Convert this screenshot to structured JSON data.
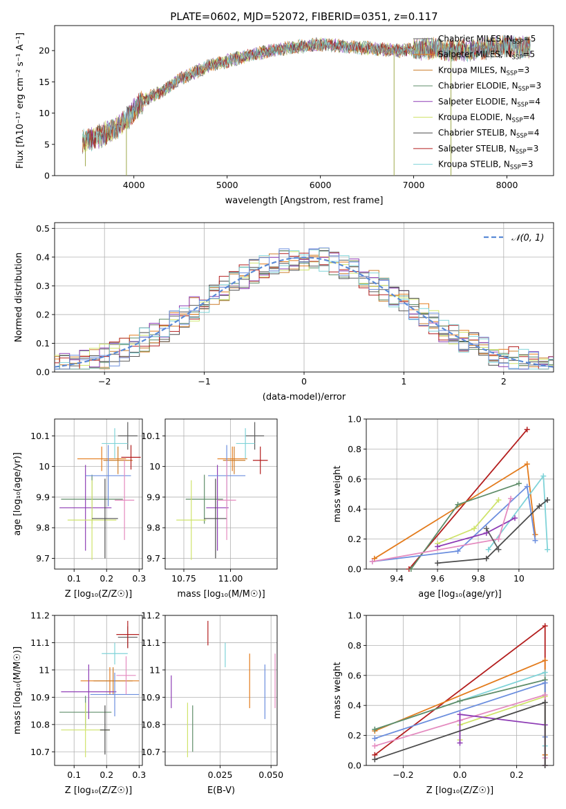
{
  "figure_title": "PLATE=0602, MJD=52072, FIBERID=0351, z=0.117",
  "colors": {
    "Chabrier MILES": "#5b5b5b",
    "Salpeter MILES": "#e37b1c",
    "Kroupa MILES": "#cc7d2a",
    "Chabrier ELODIE": "#5e8c68",
    "Salpeter ELODIE": "#8e3db5",
    "Kroupa ELODIE": "#cfe36a",
    "Chabrier STELIB": "#4b4b4b",
    "Salpeter STELIB": "#b31d1d",
    "Kroupa STELIB": "#7fd3d8",
    "blue": "#6b8ede",
    "pink": "#e48abf",
    "grid": "#b0b0b0",
    "normal_curve": "#5a8ad6"
  },
  "chart_data": [
    {
      "id": "spectrum",
      "type": "line",
      "title": "",
      "xlabel": "wavelength [Angstrom, rest frame]",
      "ylabel": "Flux [fλ10⁻¹⁷ erg cm⁻² s⁻¹ A⁻¹]",
      "xlim": [
        3150,
        8500
      ],
      "ylim": [
        0,
        24
      ],
      "xticks": [
        4000,
        5000,
        6000,
        7000,
        8000
      ],
      "yticks": [
        0,
        5,
        10,
        15,
        20
      ],
      "grid": false,
      "legend_position": "top-right",
      "continuum_knots": [
        [
          3450,
          5.5
        ],
        [
          3600,
          6.2
        ],
        [
          3800,
          7.5
        ],
        [
          3950,
          9.5
        ],
        [
          4100,
          12.0
        ],
        [
          4300,
          13.5
        ],
        [
          4500,
          15.5
        ],
        [
          4800,
          17.5
        ],
        [
          5100,
          18.7
        ],
        [
          5400,
          19.8
        ],
        [
          5700,
          20.5
        ],
        [
          6000,
          21.0
        ],
        [
          6400,
          20.5
        ],
        [
          6800,
          20.0
        ],
        [
          7200,
          20.3
        ],
        [
          7600,
          20.0
        ],
        [
          8000,
          20.8
        ],
        [
          8250,
          20.5
        ]
      ],
      "spikes": [
        [
          3920,
          0
        ],
        [
          6790,
          0
        ],
        [
          7400,
          0
        ],
        [
          3480,
          1.5
        ]
      ],
      "series": [
        {
          "name": "Chabrier MILES, N_SSP=5",
          "color_key": "Chabrier MILES",
          "legend_prefix": "Chabrier MILES, N",
          "legend_sub": "SSP",
          "legend_suffix": "=5"
        },
        {
          "name": "Salpeter MILES, N_SSP=5",
          "color_key": "Salpeter MILES",
          "legend_prefix": "Salpeter MILES, N",
          "legend_sub": "SSP",
          "legend_suffix": "=5"
        },
        {
          "name": "Kroupa MILES, N_SSP=3",
          "color_key": "Kroupa MILES",
          "legend_prefix": "Kroupa MILES, N",
          "legend_sub": "SSP",
          "legend_suffix": "=3"
        },
        {
          "name": "Chabrier ELODIE, N_SSP=3",
          "color_key": "Chabrier ELODIE",
          "legend_prefix": "Chabrier ELODIE, N",
          "legend_sub": "SSP",
          "legend_suffix": "=3"
        },
        {
          "name": "Salpeter ELODIE, N_SSP=4",
          "color_key": "Salpeter ELODIE",
          "legend_prefix": "Salpeter ELODIE, N",
          "legend_sub": "SSP",
          "legend_suffix": "=4"
        },
        {
          "name": "Kroupa ELODIE, N_SSP=4",
          "color_key": "Kroupa ELODIE",
          "legend_prefix": "Kroupa ELODIE, N",
          "legend_sub": "SSP",
          "legend_suffix": "=4"
        },
        {
          "name": "Chabrier STELIB, N_SSP=4",
          "color_key": "Chabrier STELIB",
          "legend_prefix": "Chabrier STELIB, N",
          "legend_sub": "SSP",
          "legend_suffix": "=4"
        },
        {
          "name": "Salpeter STELIB, N_SSP=3",
          "color_key": "Salpeter STELIB",
          "legend_prefix": "Salpeter STELIB, N",
          "legend_sub": "SSP",
          "legend_suffix": "=3"
        },
        {
          "name": "Kroupa STELIB, N_SSP=3",
          "color_key": "Kroupa STELIB",
          "legend_prefix": "Kroupa STELIB, N",
          "legend_sub": "SSP",
          "legend_suffix": "=3"
        }
      ]
    },
    {
      "id": "residuals",
      "type": "histogram",
      "xlabel": "(data-model)/error",
      "ylabel": "Normed distribution",
      "xlim": [
        -2.5,
        2.5
      ],
      "ylim": [
        0,
        0.52
      ],
      "xticks": [
        -2,
        -1,
        0,
        1,
        2
      ],
      "xtick_labels": [
        "−2",
        "−1",
        "0",
        "1",
        "2"
      ],
      "yticks": [
        0.0,
        0.1,
        0.2,
        0.3,
        0.4,
        0.5
      ],
      "ytick_labels": [
        "0.0",
        "0.1",
        "0.2",
        "0.3",
        "0.4",
        "0.5"
      ],
      "grid": true,
      "bin_width": 0.1,
      "normal_label": "𝒩(0, 1)",
      "legend_position": "top-right"
    },
    {
      "id": "age_vs_Z",
      "type": "errorbar",
      "xlabel": "Z [log₁₀(Z/Z☉)]",
      "ylabel": "age  [log₁₀(age/yr)]",
      "xlim": [
        0.04,
        0.31
      ],
      "ylim": [
        9.665,
        10.155
      ],
      "xticks": [
        0.1,
        0.2,
        0.3
      ],
      "yticks": [
        9.7,
        9.8,
        9.9,
        10.0,
        10.1
      ],
      "grid": true,
      "points": [
        {
          "series": "Chabrier MILES",
          "x": 0.265,
          "xerr": 0.03,
          "y": 10.1,
          "yerr": 0.045
        },
        {
          "series": "Salpeter MILES",
          "x": 0.185,
          "xerr": 0.075,
          "y": 10.025,
          "yerr": 0.04
        },
        {
          "series": "Kroupa MILES",
          "x": 0.235,
          "xerr": 0.045,
          "y": 10.02,
          "yerr": 0.045
        },
        {
          "series": "Chabrier ELODIE",
          "x": 0.155,
          "xerr": 0.095,
          "y": 9.893,
          "yerr": 0.08
        },
        {
          "series": "Salpeter ELODIE",
          "x": 0.135,
          "xerr": 0.08,
          "y": 9.865,
          "yerr": 0.14
        },
        {
          "series": "Kroupa ELODIE",
          "x": 0.155,
          "xerr": 0.075,
          "y": 9.825,
          "yerr": 0.13
        },
        {
          "series": "Chabrier STELIB",
          "x": 0.195,
          "xerr": 0.04,
          "y": 9.83,
          "yerr": 0.13
        },
        {
          "series": "Salpeter STELIB",
          "x": 0.275,
          "xerr": 0.03,
          "y": 10.03,
          "yerr": 0.04
        },
        {
          "series": "Kroupa STELIB",
          "x": 0.225,
          "xerr": 0.04,
          "y": 10.075,
          "yerr": 0.05
        },
        {
          "series": "blue",
          "x": 0.205,
          "xerr": 0.07,
          "y": 9.97,
          "yerr": 0.1
        },
        {
          "series": "pink",
          "x": 0.255,
          "xerr": 0.03,
          "y": 9.89,
          "yerr": 0.13
        }
      ]
    },
    {
      "id": "age_vs_mass",
      "type": "errorbar",
      "xlabel": "mass [log₁₀(M/M☉)]",
      "ylabel": "",
      "xlim": [
        10.65,
        11.25
      ],
      "ylim": [
        9.665,
        10.155
      ],
      "xticks": [
        10.75,
        11.0
      ],
      "xtick_labels": [
        "10.75",
        "11.00"
      ],
      "yticks": [
        9.7,
        9.8,
        9.9,
        10.0,
        10.1
      ],
      "grid": true,
      "points": [
        {
          "series": "Chabrier MILES",
          "x": 11.13,
          "xerr": 0.05,
          "y": 10.1,
          "yerr": 0.045
        },
        {
          "series": "Salpeter MILES",
          "x": 11.01,
          "xerr": 0.08,
          "y": 10.025,
          "yerr": 0.04
        },
        {
          "series": "Kroupa MILES",
          "x": 11.02,
          "xerr": 0.06,
          "y": 10.02,
          "yerr": 0.045
        },
        {
          "series": "Chabrier ELODIE",
          "x": 10.86,
          "xerr": 0.1,
          "y": 9.893,
          "yerr": 0.08
        },
        {
          "series": "Salpeter ELODIE",
          "x": 10.93,
          "xerr": 0.06,
          "y": 9.865,
          "yerr": 0.14
        },
        {
          "series": "Kroupa ELODIE",
          "x": 10.79,
          "xerr": 0.08,
          "y": 9.825,
          "yerr": 0.13
        },
        {
          "series": "Chabrier STELIB",
          "x": 10.92,
          "xerr": 0.06,
          "y": 9.83,
          "yerr": 0.13
        },
        {
          "series": "Salpeter STELIB",
          "x": 11.16,
          "xerr": 0.04,
          "y": 10.02,
          "yerr": 0.045
        },
        {
          "series": "Kroupa STELIB",
          "x": 11.08,
          "xerr": 0.05,
          "y": 10.075,
          "yerr": 0.05
        },
        {
          "series": "blue",
          "x": 10.98,
          "xerr": 0.1,
          "y": 9.97,
          "yerr": 0.1
        },
        {
          "series": "pink",
          "x": 10.98,
          "xerr": 0.05,
          "y": 9.89,
          "yerr": 0.13
        }
      ]
    },
    {
      "id": "weight_vs_age",
      "type": "line",
      "xlabel": "age  [log₁₀(age/yr)]",
      "ylabel": "mass weight",
      "xlim": [
        9.25,
        10.17
      ],
      "ylim": [
        0,
        1
      ],
      "xticks": [
        9.4,
        9.6,
        9.8,
        10.0
      ],
      "yticks": [
        0,
        0.2,
        0.4,
        0.6,
        0.8,
        1.0
      ],
      "ytick_labels": [
        "0.0",
        "0.2",
        "0.4",
        "0.6",
        "0.8",
        "1.0"
      ],
      "grid": true,
      "series": [
        {
          "series": "Salpeter STELIB",
          "x": [
            9.46,
            10.04
          ],
          "y": [
            0.0,
            0.93
          ]
        },
        {
          "series": "Salpeter MILES",
          "x": [
            9.29,
            10.04,
            10.08
          ],
          "y": [
            0.07,
            0.7,
            0.23
          ]
        },
        {
          "series": "Chabrier ELODIE",
          "x": [
            9.47,
            9.7,
            10.0
          ],
          "y": [
            0.0,
            0.43,
            0.57
          ]
        },
        {
          "series": "Kroupa STELIB",
          "x": [
            9.85,
            10.12,
            10.14
          ],
          "y": [
            0.13,
            0.62,
            0.13
          ]
        },
        {
          "series": "blue",
          "x": [
            9.28,
            9.7,
            10.04,
            10.08
          ],
          "y": [
            0.05,
            0.12,
            0.55,
            0.19
          ]
        },
        {
          "series": "Kroupa ELODIE",
          "x": [
            9.6,
            9.78,
            9.9
          ],
          "y": [
            0.17,
            0.27,
            0.46
          ]
        },
        {
          "series": "Salpeter ELODIE",
          "x": [
            9.6,
            9.84,
            9.98
          ],
          "y": [
            0.15,
            0.24,
            0.34
          ]
        },
        {
          "series": "Chabrier STELIB",
          "x": [
            9.6,
            9.84,
            10.1,
            10.14
          ],
          "y": [
            0.04,
            0.07,
            0.42,
            0.46
          ]
        },
        {
          "series": "pink",
          "x": [
            9.28,
            9.9,
            9.96
          ],
          "y": [
            0.05,
            0.2,
            0.47
          ]
        },
        {
          "series": "Chabrier MILES",
          "x": [
            9.84,
            9.9
          ],
          "y": [
            0.27,
            0.13
          ]
        }
      ]
    },
    {
      "id": "mass_vs_Z",
      "type": "errorbar",
      "xlabel": "Z [log₁₀(Z/Z☉)]",
      "ylabel": "mass [log₁₀(M/M☉)]",
      "xlim": [
        0.04,
        0.31
      ],
      "ylim": [
        10.65,
        11.2
      ],
      "xticks": [
        0.1,
        0.2,
        0.3
      ],
      "yticks": [
        10.7,
        10.8,
        10.9,
        11.0,
        11.1,
        11.2
      ],
      "grid": true,
      "points": [
        {
          "series": "Chabrier MILES",
          "x": 0.265,
          "xerr": 0.03,
          "y": 11.12,
          "yerr": 0.04
        },
        {
          "series": "Salpeter MILES",
          "x": 0.21,
          "xerr": 0.09,
          "y": 10.96,
          "yerr": 0.05
        },
        {
          "series": "Kroupa MILES",
          "x": 0.22,
          "xerr": 0.06,
          "y": 10.96,
          "yerr": 0.05
        },
        {
          "series": "Chabrier ELODIE",
          "x": 0.135,
          "xerr": 0.08,
          "y": 10.845,
          "yerr": 0.06
        },
        {
          "series": "Salpeter ELODIE",
          "x": 0.145,
          "xerr": 0.085,
          "y": 10.92,
          "yerr": 0.1
        },
        {
          "series": "Kroupa ELODIE",
          "x": 0.135,
          "xerr": 0.075,
          "y": 10.78,
          "yerr": 0.1
        },
        {
          "series": "Chabrier STELIB",
          "x": 0.195,
          "xerr": 0.015,
          "y": 10.78,
          "yerr": 0.09
        },
        {
          "series": "Salpeter STELIB",
          "x": 0.265,
          "xerr": 0.035,
          "y": 11.13,
          "yerr": 0.05
        },
        {
          "series": "Kroupa STELIB",
          "x": 0.225,
          "xerr": 0.04,
          "y": 11.06,
          "yerr": 0.04
        },
        {
          "series": "blue",
          "x": 0.225,
          "xerr": 0.075,
          "y": 10.91,
          "yerr": 0.08
        },
        {
          "series": "pink",
          "x": 0.26,
          "xerr": 0.03,
          "y": 10.98,
          "yerr": 0.07
        }
      ]
    },
    {
      "id": "mass_vs_EBV",
      "type": "errorbar",
      "xlabel": "E(B-V)",
      "ylabel": "",
      "xlim": [
        -0.002,
        0.053
      ],
      "ylim": [
        10.65,
        11.2
      ],
      "xticks": [
        0.025,
        0.05
      ],
      "xtick_labels": [
        "0.025",
        "0.050"
      ],
      "yticks": [
        10.7,
        10.8,
        10.9,
        11.0,
        11.1,
        11.2
      ],
      "grid": true,
      "points": [
        {
          "series": "Salpeter ELODIE",
          "x": 0.001,
          "xerr": 0,
          "y": 10.92,
          "yerr": 0.06
        },
        {
          "series": "Kroupa ELODIE",
          "x": 0.009,
          "xerr": 0,
          "y": 10.78,
          "yerr": 0.1
        },
        {
          "series": "Chabrier ELODIE",
          "x": 0.0115,
          "xerr": 0,
          "y": 10.785,
          "yerr": 0.085
        },
        {
          "series": "Salpeter STELIB",
          "x": 0.019,
          "xerr": 0,
          "y": 11.135,
          "yerr": 0.045
        },
        {
          "series": "Kroupa STELIB",
          "x": 0.0275,
          "xerr": 0,
          "y": 11.055,
          "yerr": 0.045
        },
        {
          "series": "Salpeter MILES",
          "x": 0.0395,
          "xerr": 0,
          "y": 10.96,
          "yerr": 0.1
        },
        {
          "series": "blue",
          "x": 0.047,
          "xerr": 0,
          "y": 10.92,
          "yerr": 0.1
        },
        {
          "series": "pink",
          "x": 0.052,
          "xerr": 0,
          "y": 10.96,
          "yerr": 0.1
        }
      ]
    },
    {
      "id": "weight_vs_Z",
      "type": "line",
      "xlabel": "Z [log₁₀(Z/Z☉)]",
      "ylabel": "mass weight",
      "xlim": [
        -0.33,
        0.33
      ],
      "ylim": [
        0,
        1
      ],
      "xticks": [
        -0.2,
        0.0,
        0.2
      ],
      "xtick_labels": [
        "−0.2",
        "0.0",
        "0.2"
      ],
      "yticks": [
        0,
        0.2,
        0.4,
        0.6,
        0.8,
        1.0
      ],
      "ytick_labels": [
        "0.0",
        "0.2",
        "0.4",
        "0.6",
        "0.8",
        "1.0"
      ],
      "grid": true,
      "series": [
        {
          "series": "Salpeter STELIB",
          "x": [
            -0.3,
            0.3,
            0.3
          ],
          "y": [
            0.07,
            0.93,
            0.0
          ]
        },
        {
          "series": "Salpeter MILES",
          "x": [
            -0.3,
            0.3,
            0.3
          ],
          "y": [
            0.23,
            0.7,
            0.07
          ]
        },
        {
          "series": "Kroupa STELIB",
          "x": [
            -0.3,
            0.3,
            0.3
          ],
          "y": [
            0.24,
            0.62,
            0.13
          ]
        },
        {
          "series": "Chabrier ELODIE",
          "x": [
            -0.3,
            0.0,
            0.3,
            0.3
          ],
          "y": [
            0.24,
            0.43,
            0.57,
            0.0
          ]
        },
        {
          "series": "blue",
          "x": [
            -0.3,
            0.3,
            0.3
          ],
          "y": [
            0.18,
            0.55,
            0.19
          ]
        },
        {
          "series": "Kroupa ELODIE",
          "x": [
            0.0,
            0.0,
            0.3,
            0.3
          ],
          "y": [
            0.17,
            0.27,
            0.46,
            0.0
          ]
        },
        {
          "series": "pink",
          "x": [
            -0.3,
            0.0,
            0.3,
            0.3
          ],
          "y": [
            0.13,
            0.3,
            0.47,
            0.05
          ]
        },
        {
          "series": "Salpeter ELODIE",
          "x": [
            0.0,
            0.0,
            0.3,
            0.3
          ],
          "y": [
            0.15,
            0.34,
            0.27,
            0.0
          ]
        },
        {
          "series": "Chabrier STELIB",
          "x": [
            -0.3,
            0.3,
            0.3
          ],
          "y": [
            0.04,
            0.42,
            0.0
          ]
        }
      ]
    }
  ]
}
